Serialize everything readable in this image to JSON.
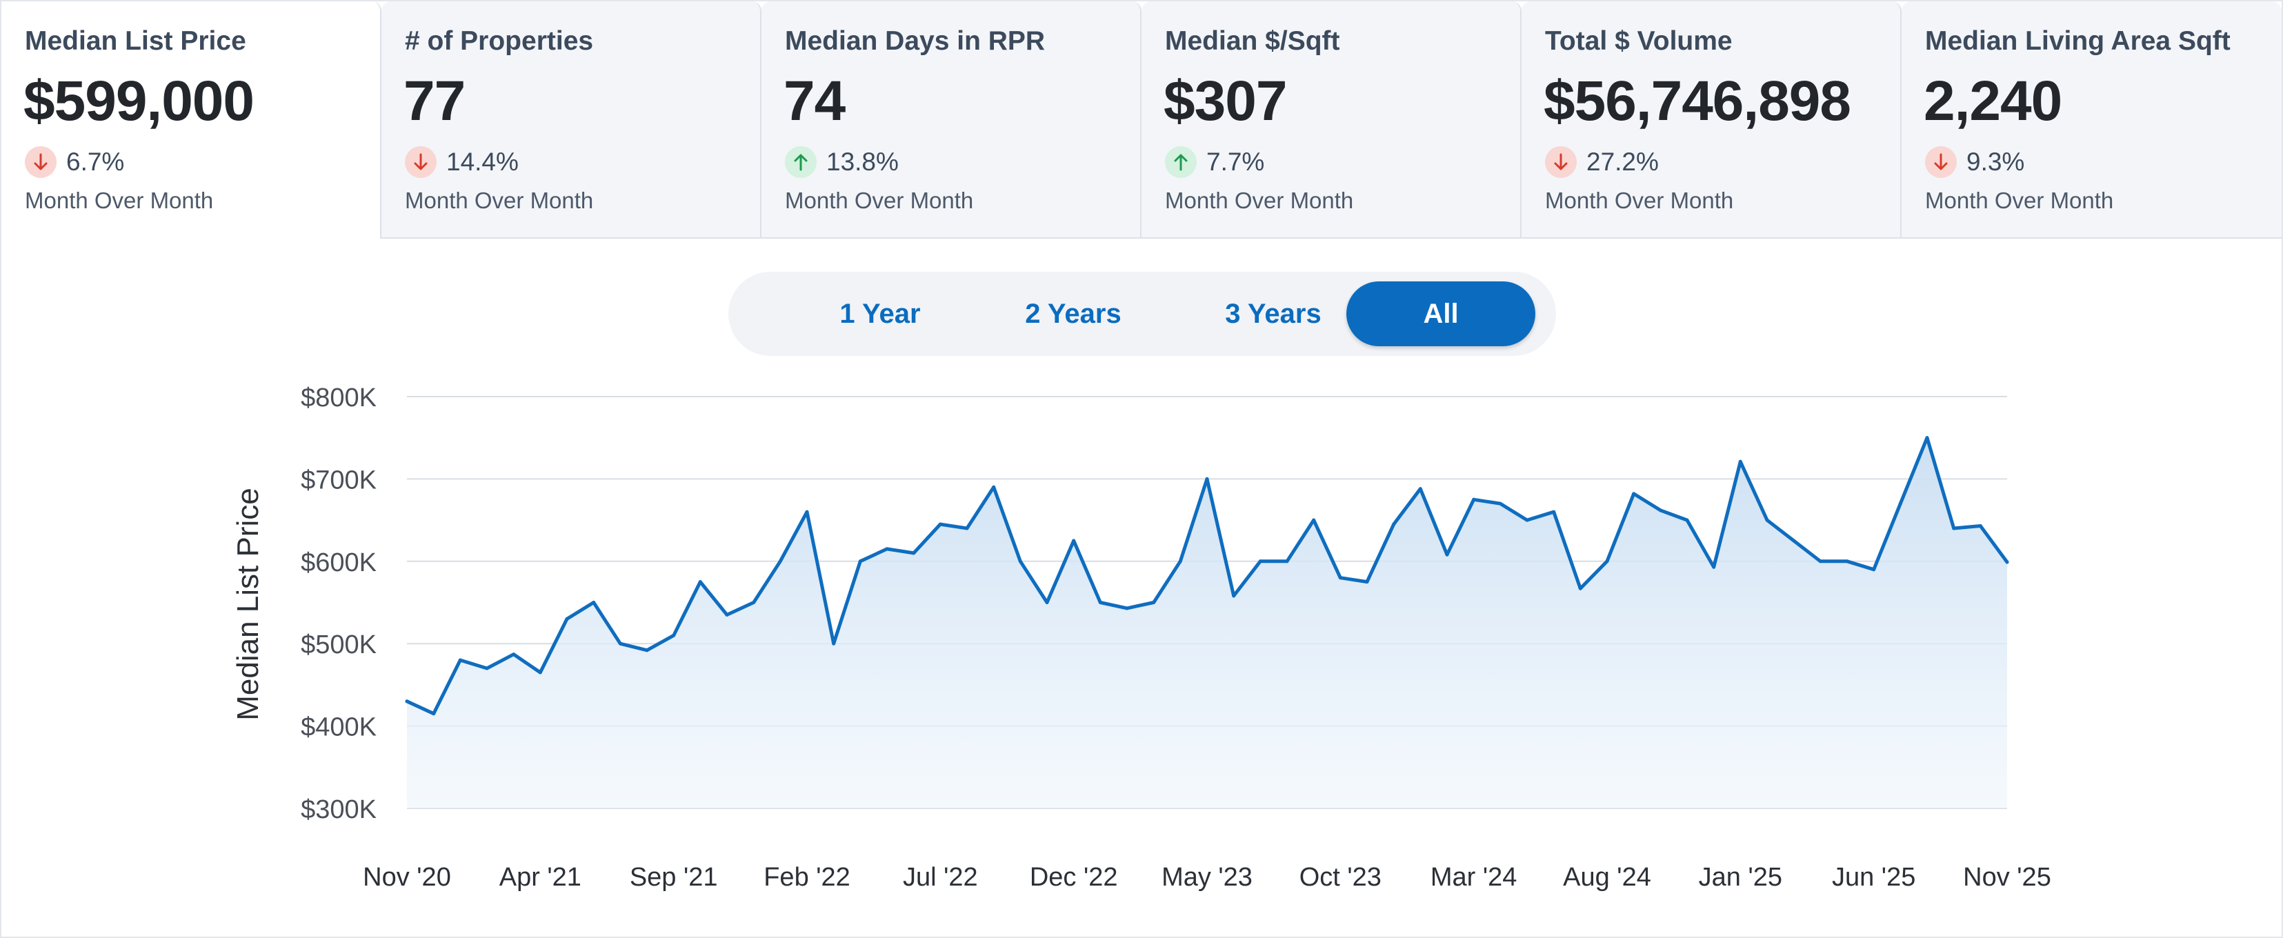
{
  "stats": [
    {
      "label": "Median List Price",
      "value": "$599,000",
      "direction": "down",
      "change": "6.7%",
      "period": "Month Over Month",
      "active": true
    },
    {
      "label": "# of Properties",
      "value": "77",
      "direction": "down",
      "change": "14.4%",
      "period": "Month Over Month",
      "active": false
    },
    {
      "label": "Median Days in RPR",
      "value": "74",
      "direction": "up",
      "change": "13.8%",
      "period": "Month Over Month",
      "active": false
    },
    {
      "label": "Median $/Sqft",
      "value": "$307",
      "direction": "up",
      "change": "7.7%",
      "period": "Month Over Month",
      "active": false
    },
    {
      "label": "Total $ Volume",
      "value": "$56,746,898",
      "direction": "down",
      "change": "27.2%",
      "period": "Month Over Month",
      "active": false
    },
    {
      "label": "Median Living Area Sqft",
      "value": "2,240",
      "direction": "down",
      "change": "9.3%",
      "period": "Month Over Month",
      "active": false
    }
  ],
  "range": {
    "options": [
      "1 Year",
      "2 Years",
      "3 Years",
      "All"
    ],
    "selected": "All"
  },
  "colors": {
    "accent": "#0b6cbf",
    "line": "#0f6dbf",
    "down_arrow": "#d93a2b",
    "up_arrow": "#1e9a4f"
  },
  "icons": {
    "down": "arrow-down-icon",
    "up": "arrow-up-icon"
  },
  "chart_data": {
    "type": "area",
    "ylabel": "Median List Price",
    "ylim": [
      300000,
      800000
    ],
    "y_ticks": [
      {
        "value": 800000,
        "label": "$800K"
      },
      {
        "value": 700000,
        "label": "$700K"
      },
      {
        "value": 600000,
        "label": "$600K"
      },
      {
        "value": 500000,
        "label": "$500K"
      },
      {
        "value": 400000,
        "label": "$400K"
      },
      {
        "value": 300000,
        "label": "$300K"
      }
    ],
    "x_ticks": [
      {
        "month": "2020-11",
        "label": "Nov '20"
      },
      {
        "month": "2021-04",
        "label": "Apr '21"
      },
      {
        "month": "2021-09",
        "label": "Sep '21"
      },
      {
        "month": "2022-02",
        "label": "Feb '22"
      },
      {
        "month": "2022-07",
        "label": "Jul '22"
      },
      {
        "month": "2022-12",
        "label": "Dec '22"
      },
      {
        "month": "2023-05",
        "label": "May '23"
      },
      {
        "month": "2023-10",
        "label": "Oct '23"
      },
      {
        "month": "2024-03",
        "label": "Mar '24"
      },
      {
        "month": "2024-08",
        "label": "Aug '24"
      },
      {
        "month": "2025-01",
        "label": "Jan '25"
      },
      {
        "month": "2025-06",
        "label": "Jun '25"
      },
      {
        "month": "2025-11",
        "label": "Nov '25"
      }
    ],
    "series": [
      {
        "points": [
          {
            "month": "2020-11",
            "value": 430000
          },
          {
            "month": "2020-12",
            "value": 415000
          },
          {
            "month": "2021-01",
            "value": 480000
          },
          {
            "month": "2021-02",
            "value": 470000
          },
          {
            "month": "2021-03",
            "value": 487000
          },
          {
            "month": "2021-04",
            "value": 465000
          },
          {
            "month": "2021-05",
            "value": 530000
          },
          {
            "month": "2021-06",
            "value": 550000
          },
          {
            "month": "2021-07",
            "value": 500000
          },
          {
            "month": "2021-08",
            "value": 492000
          },
          {
            "month": "2021-09",
            "value": 510000
          },
          {
            "month": "2021-10",
            "value": 575000
          },
          {
            "month": "2021-11",
            "value": 535000
          },
          {
            "month": "2021-12",
            "value": 550000
          },
          {
            "month": "2022-01",
            "value": 600000
          },
          {
            "month": "2022-02",
            "value": 660000
          },
          {
            "month": "2022-03",
            "value": 500000
          },
          {
            "month": "2022-04",
            "value": 600000
          },
          {
            "month": "2022-05",
            "value": 615000
          },
          {
            "month": "2022-06",
            "value": 610000
          },
          {
            "month": "2022-07",
            "value": 645000
          },
          {
            "month": "2022-08",
            "value": 640000
          },
          {
            "month": "2022-09",
            "value": 690000
          },
          {
            "month": "2022-10",
            "value": 600000
          },
          {
            "month": "2022-11",
            "value": 550000
          },
          {
            "month": "2022-12",
            "value": 625000
          },
          {
            "month": "2023-01",
            "value": 550000
          },
          {
            "month": "2023-02",
            "value": 543000
          },
          {
            "month": "2023-03",
            "value": 550000
          },
          {
            "month": "2023-04",
            "value": 600000
          },
          {
            "month": "2023-05",
            "value": 700000
          },
          {
            "month": "2023-06",
            "value": 558000
          },
          {
            "month": "2023-07",
            "value": 600000
          },
          {
            "month": "2023-08",
            "value": 600000
          },
          {
            "month": "2023-09",
            "value": 650000
          },
          {
            "month": "2023-10",
            "value": 580000
          },
          {
            "month": "2023-11",
            "value": 575000
          },
          {
            "month": "2023-12",
            "value": 645000
          },
          {
            "month": "2024-01",
            "value": 688000
          },
          {
            "month": "2024-02",
            "value": 608000
          },
          {
            "month": "2024-03",
            "value": 675000
          },
          {
            "month": "2024-04",
            "value": 670000
          },
          {
            "month": "2024-05",
            "value": 650000
          },
          {
            "month": "2024-06",
            "value": 660000
          },
          {
            "month": "2024-07",
            "value": 567000
          },
          {
            "month": "2024-08",
            "value": 600000
          },
          {
            "month": "2024-09",
            "value": 682000
          },
          {
            "month": "2024-10",
            "value": 662000
          },
          {
            "month": "2024-11",
            "value": 650000
          },
          {
            "month": "2024-12",
            "value": 593000
          },
          {
            "month": "2025-01",
            "value": 721000
          },
          {
            "month": "2025-02",
            "value": 650000
          },
          {
            "month": "2025-03",
            "value": 625000
          },
          {
            "month": "2025-04",
            "value": 600000
          },
          {
            "month": "2025-05",
            "value": 600000
          },
          {
            "month": "2025-06",
            "value": 590000
          },
          {
            "month": "2025-07",
            "value": 670000
          },
          {
            "month": "2025-08",
            "value": 750000
          },
          {
            "month": "2025-09",
            "value": 640000
          },
          {
            "month": "2025-10",
            "value": 643000
          },
          {
            "month": "2025-11",
            "value": 599000
          }
        ]
      }
    ],
    "grid": true,
    "legend": "none"
  }
}
